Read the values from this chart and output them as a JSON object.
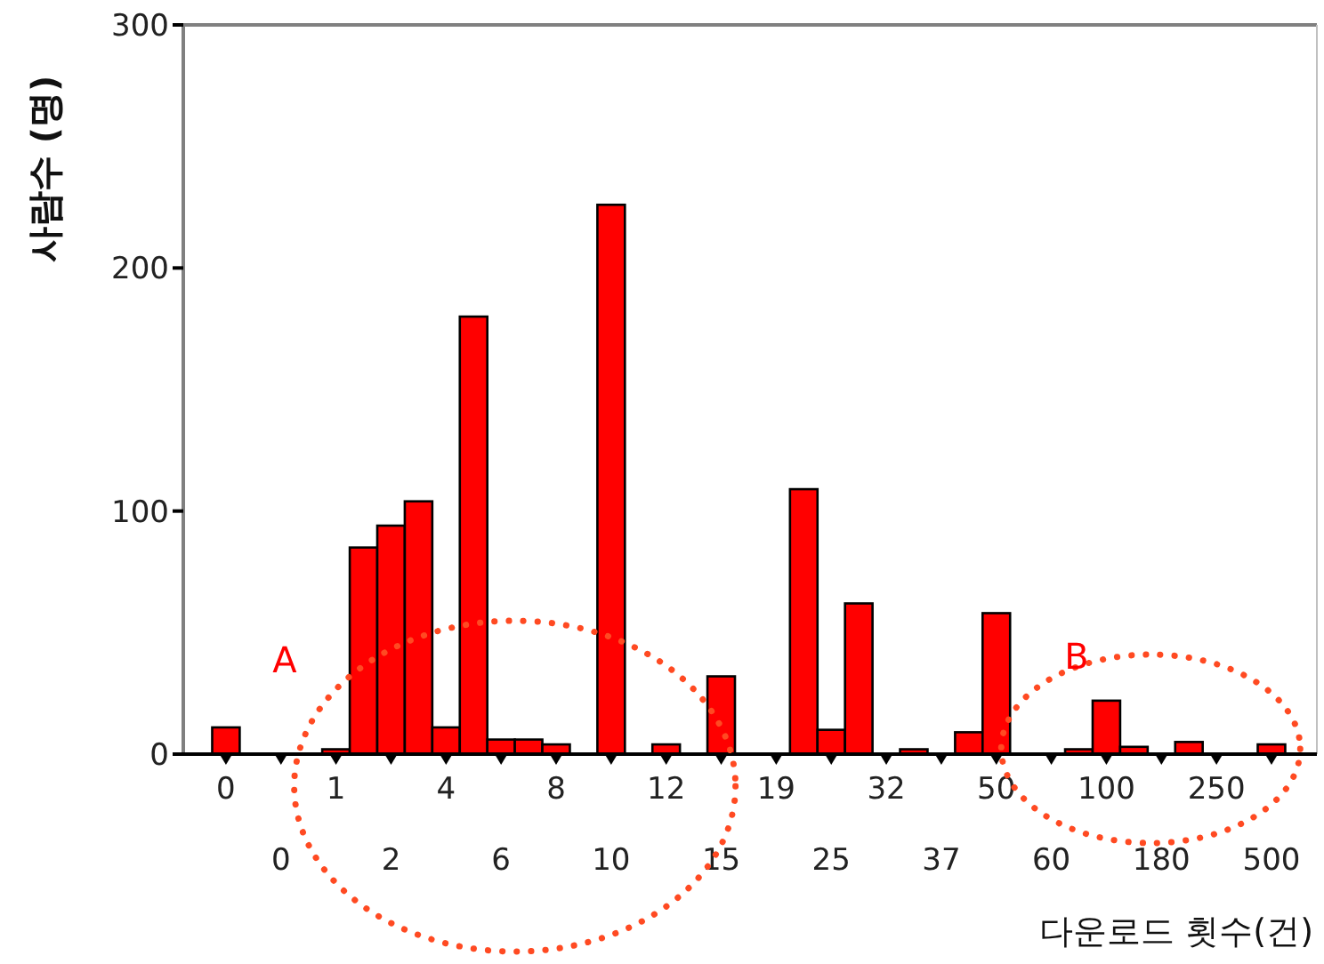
{
  "chart_data": {
    "type": "bar",
    "xlabel": "다운로드 횟수(건)",
    "ylabel": "사람수 (명)",
    "categories": [
      "0",
      null,
      "0",
      null,
      "1",
      null,
      "2",
      null,
      "4",
      null,
      "6",
      null,
      "8",
      null,
      "10",
      null,
      "12",
      null,
      "15",
      null,
      "19",
      null,
      "25",
      null,
      "32",
      null,
      "37",
      null,
      "50",
      null,
      "60",
      null,
      "100",
      null,
      "180",
      null,
      "250",
      null,
      "500"
    ],
    "values": [
      11,
      0,
      0,
      0,
      2,
      85,
      94,
      104,
      11,
      180,
      6,
      6,
      4,
      null,
      226,
      null,
      4,
      null,
      32,
      0,
      0,
      109,
      10,
      62,
      0,
      2,
      0,
      9,
      58,
      0,
      0,
      2,
      22,
      3,
      0,
      5,
      0,
      0,
      4
    ],
    "color": "#ff0000",
    "ylim": [
      0,
      300
    ],
    "yticks": [
      0,
      100,
      200,
      300
    ],
    "annotations": [
      "A",
      "B"
    ]
  }
}
